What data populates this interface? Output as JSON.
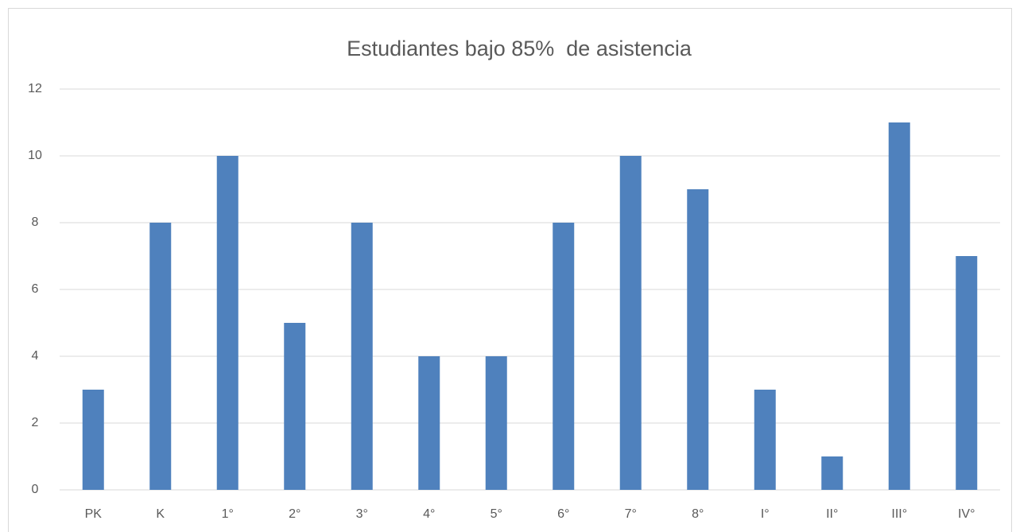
{
  "chart_data": {
    "type": "bar",
    "title": "Estudiantes bajo 85%  de asistencia",
    "categories": [
      "PK",
      "K",
      "1°",
      "2°",
      "3°",
      "4°",
      "5°",
      "6°",
      "7°",
      "8°",
      "I°",
      "II°",
      "III°",
      "IV°"
    ],
    "values": [
      3,
      8,
      10,
      5,
      8,
      4,
      4,
      8,
      10,
      9,
      3,
      1,
      11,
      7
    ],
    "color": "#4f81bd",
    "ylim": [
      0,
      12
    ],
    "yticks": [
      0,
      2,
      4,
      6,
      8,
      10,
      12
    ],
    "grid": true
  }
}
